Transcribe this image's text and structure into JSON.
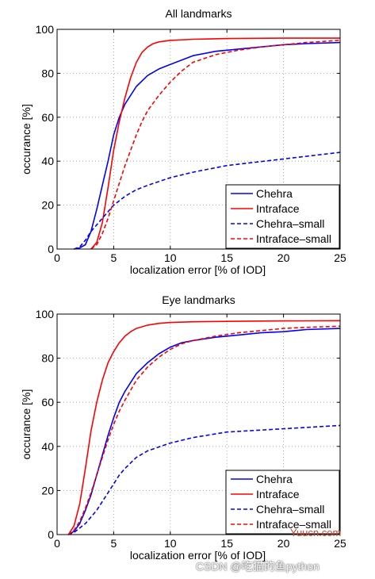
{
  "chart_data": [
    {
      "type": "line",
      "title": "All landmarks",
      "xlabel": "localization error [% of IOD]",
      "ylabel": "occurance [%]",
      "xlim": [
        0,
        25
      ],
      "ylim": [
        0,
        100
      ],
      "xticks": [
        0,
        5,
        10,
        15,
        20,
        25
      ],
      "yticks": [
        0,
        20,
        40,
        60,
        80,
        100
      ],
      "grid": true,
      "legend_position": "bottom-right",
      "series": [
        {
          "name": "Chehra",
          "color": "#0000ff",
          "dash": "solid",
          "x": [
            1.5,
            2,
            2.5,
            3,
            3.5,
            4,
            4.5,
            5,
            5.5,
            6,
            7,
            8,
            9,
            10,
            12,
            14,
            16,
            18,
            20,
            22,
            25
          ],
          "y": [
            0,
            0.5,
            2,
            8,
            18,
            29,
            40,
            52,
            60,
            66,
            74,
            79,
            82,
            84,
            88,
            90,
            91,
            92,
            93,
            93.5,
            94
          ]
        },
        {
          "name": "Intraface",
          "color": "#ff0000",
          "dash": "solid",
          "x": [
            3,
            3.5,
            4,
            4.5,
            5,
            5.5,
            6,
            6.5,
            7,
            7.5,
            8,
            8.5,
            9,
            10,
            12,
            15,
            20,
            25
          ],
          "y": [
            0,
            3,
            12,
            28,
            45,
            58,
            69,
            78,
            85,
            89.5,
            92,
            93.5,
            94.3,
            95,
            95.5,
            95.8,
            96,
            96
          ]
        },
        {
          "name": "Chehra–small",
          "color": "#0000ff",
          "dash": "dashed",
          "x": [
            1.5,
            2,
            2.5,
            3,
            3.5,
            4,
            4.5,
            5,
            5.5,
            6,
            7,
            8,
            10,
            12,
            15,
            20,
            25
          ],
          "y": [
            0,
            1,
            4,
            8,
            11,
            14,
            17,
            20,
            22,
            24,
            27,
            29,
            32.5,
            35,
            38,
            41,
            44
          ]
        },
        {
          "name": "Intraface–small",
          "color": "#ff0000",
          "dash": "dashed",
          "x": [
            3,
            3.5,
            4,
            4.5,
            5,
            5.5,
            6,
            6.5,
            7,
            7.5,
            8,
            9,
            10,
            11,
            12,
            14,
            16,
            18,
            20,
            22,
            25
          ],
          "y": [
            0,
            2,
            7,
            14,
            22,
            30,
            38,
            45,
            52,
            58,
            63,
            70,
            76,
            81,
            85,
            88.5,
            90.5,
            92,
            93,
            94,
            95
          ]
        }
      ]
    },
    {
      "type": "line",
      "title": "Eye landmarks",
      "xlabel": "localization error [% of IOD]",
      "ylabel": "occurance [%]",
      "xlim": [
        0,
        25
      ],
      "ylim": [
        0,
        100
      ],
      "xticks": [
        0,
        5,
        10,
        15,
        20,
        25
      ],
      "yticks": [
        0,
        20,
        40,
        60,
        80,
        100
      ],
      "grid": true,
      "legend_position": "bottom-right",
      "series": [
        {
          "name": "Chehra",
          "color": "#0000ff",
          "dash": "solid",
          "x": [
            1,
            1.5,
            2,
            2.5,
            3,
            3.5,
            4,
            4.5,
            5,
            5.5,
            6,
            7,
            8,
            9,
            10,
            11,
            12,
            14,
            16,
            18,
            20,
            22,
            25
          ],
          "y": [
            0,
            1.5,
            5,
            11,
            18,
            27,
            36,
            45,
            53,
            60,
            65,
            73,
            78,
            82,
            85,
            87,
            88,
            89.5,
            90.5,
            91.5,
            92,
            93,
            93.5
          ]
        },
        {
          "name": "Intraface",
          "color": "#ff0000",
          "dash": "solid",
          "x": [
            1,
            1.5,
            2,
            2.5,
            3,
            3.5,
            4,
            4.5,
            5,
            5.5,
            6,
            6.5,
            7,
            8,
            9,
            10,
            12,
            15,
            20,
            25
          ],
          "y": [
            0,
            4,
            14,
            30,
            47,
            60,
            70,
            78,
            83,
            87,
            90,
            92,
            93.5,
            95,
            95.8,
            96.2,
            96.5,
            96.7,
            96.9,
            97
          ]
        },
        {
          "name": "Chehra–small",
          "color": "#0000ff",
          "dash": "dashed",
          "x": [
            1,
            1.5,
            2,
            2.5,
            3,
            3.5,
            4,
            4.5,
            5,
            5.5,
            6,
            7,
            8,
            10,
            12,
            15,
            20,
            25
          ],
          "y": [
            0,
            1,
            3,
            5,
            8,
            11,
            15,
            19,
            23,
            27,
            30,
            35,
            38,
            41.5,
            44,
            46.5,
            48,
            49.5
          ]
        },
        {
          "name": "Intraface–small",
          "color": "#ff0000",
          "dash": "dashed",
          "x": [
            1,
            1.5,
            2,
            2.5,
            3,
            3.5,
            4,
            4.5,
            5,
            5.5,
            6,
            7,
            8,
            9,
            10,
            11,
            12,
            14,
            16,
            18,
            20,
            22,
            25
          ],
          "y": [
            0,
            2,
            6,
            12,
            19,
            27,
            35,
            43,
            50,
            56,
            61,
            70,
            76,
            80.5,
            84,
            86.5,
            88,
            90,
            91.5,
            92.5,
            93.5,
            94,
            94.5
          ]
        }
      ]
    }
  ],
  "watermarks": {
    "yuucn": "Yuucn.com",
    "csdn": "CSDN @吃猫的鱼python"
  }
}
